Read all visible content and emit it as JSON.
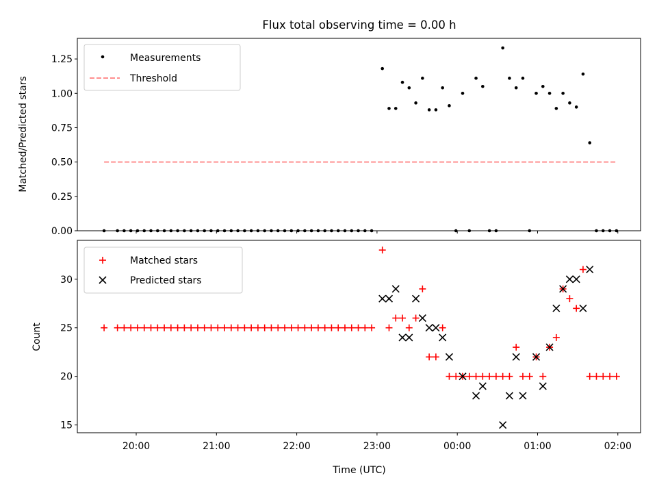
{
  "chart_data": [
    {
      "type": "scatter",
      "title": "Flux total observing time = 0.00 h",
      "xlabel": "",
      "ylabel": "Matched/Predicted stars",
      "ylim": [
        0,
        1.4
      ],
      "yticks": [
        "0.00",
        "0.25",
        "0.50",
        "0.75",
        "1.00",
        "1.25"
      ],
      "xlim": [
        "19:16",
        "02:17"
      ],
      "grid": false,
      "legend_position": "upper-left",
      "series": [
        {
          "name": "Measurements",
          "marker": "dot",
          "color": "#000000",
          "points": [
            [
              "19:36",
              0
            ],
            [
              "19:46",
              0
            ],
            [
              "19:51",
              0
            ],
            [
              "19:56",
              0
            ],
            [
              "20:01",
              0
            ],
            [
              "20:06",
              0
            ],
            [
              "20:11",
              0
            ],
            [
              "20:16",
              0
            ],
            [
              "20:21",
              0
            ],
            [
              "20:26",
              0
            ],
            [
              "20:31",
              0
            ],
            [
              "20:36",
              0
            ],
            [
              "20:41",
              0
            ],
            [
              "20:46",
              0
            ],
            [
              "20:51",
              0
            ],
            [
              "20:56",
              0
            ],
            [
              "21:01",
              0
            ],
            [
              "21:06",
              0
            ],
            [
              "21:11",
              0
            ],
            [
              "21:16",
              0
            ],
            [
              "21:21",
              0
            ],
            [
              "21:26",
              0
            ],
            [
              "21:31",
              0
            ],
            [
              "21:36",
              0
            ],
            [
              "21:41",
              0
            ],
            [
              "21:46",
              0
            ],
            [
              "21:51",
              0
            ],
            [
              "21:56",
              0
            ],
            [
              "22:01",
              0
            ],
            [
              "22:06",
              0
            ],
            [
              "22:11",
              0
            ],
            [
              "22:16",
              0
            ],
            [
              "22:21",
              0
            ],
            [
              "22:26",
              0
            ],
            [
              "22:31",
              0
            ],
            [
              "22:36",
              0
            ],
            [
              "22:41",
              0
            ],
            [
              "22:46",
              0
            ],
            [
              "22:51",
              0
            ],
            [
              "22:56",
              0
            ],
            [
              "23:04",
              1.18
            ],
            [
              "23:09",
              0.89
            ],
            [
              "23:14",
              0.89
            ],
            [
              "23:19",
              1.08
            ],
            [
              "23:24",
              1.04
            ],
            [
              "23:29",
              0.93
            ],
            [
              "23:34",
              1.11
            ],
            [
              "23:39",
              0.88
            ],
            [
              "23:44",
              0.88
            ],
            [
              "23:49",
              1.04
            ],
            [
              "23:54",
              0.91
            ],
            [
              "23:59",
              0
            ],
            [
              "00:04",
              1.0
            ],
            [
              "00:09",
              0
            ],
            [
              "00:14",
              1.11
            ],
            [
              "00:19",
              1.05
            ],
            [
              "00:24",
              0
            ],
            [
              "00:29",
              0
            ],
            [
              "00:34",
              1.33
            ],
            [
              "00:39",
              1.11
            ],
            [
              "00:44",
              1.04
            ],
            [
              "00:49",
              1.11
            ],
            [
              "00:54",
              0
            ],
            [
              "00:59",
              1.0
            ],
            [
              "01:04",
              1.05
            ],
            [
              "01:09",
              1.0
            ],
            [
              "01:14",
              0.89
            ],
            [
              "01:19",
              1.0
            ],
            [
              "01:24",
              0.93
            ],
            [
              "01:29",
              0.9
            ],
            [
              "01:34",
              1.14
            ],
            [
              "01:39",
              0.64
            ],
            [
              "01:44",
              0
            ],
            [
              "01:49",
              0
            ],
            [
              "01:54",
              0
            ],
            [
              "01:59",
              0
            ]
          ]
        },
        {
          "name": "Threshold",
          "style": "dashed",
          "color": "#ff7f7f",
          "points": [
            [
              "19:36",
              0.5
            ],
            [
              "01:59",
              0.5
            ]
          ]
        }
      ]
    },
    {
      "type": "scatter",
      "title": "",
      "xlabel": "Time (UTC)",
      "ylabel": "Count",
      "ylim": [
        14.2,
        34.0
      ],
      "yticks": [
        "15",
        "20",
        "25",
        "30"
      ],
      "xlim": [
        "19:16",
        "02:17"
      ],
      "xticks": [
        "20:00",
        "21:00",
        "22:00",
        "23:00",
        "00:00",
        "01:00",
        "02:00"
      ],
      "grid": false,
      "legend_position": "upper-left",
      "series": [
        {
          "name": "Matched stars",
          "marker": "plus",
          "color": "#ff0000",
          "points": [
            [
              "19:36",
              25
            ],
            [
              "19:46",
              25
            ],
            [
              "19:51",
              25
            ],
            [
              "19:56",
              25
            ],
            [
              "20:01",
              25
            ],
            [
              "20:06",
              25
            ],
            [
              "20:11",
              25
            ],
            [
              "20:16",
              25
            ],
            [
              "20:21",
              25
            ],
            [
              "20:26",
              25
            ],
            [
              "20:31",
              25
            ],
            [
              "20:36",
              25
            ],
            [
              "20:41",
              25
            ],
            [
              "20:46",
              25
            ],
            [
              "20:51",
              25
            ],
            [
              "20:56",
              25
            ],
            [
              "21:01",
              25
            ],
            [
              "21:06",
              25
            ],
            [
              "21:11",
              25
            ],
            [
              "21:16",
              25
            ],
            [
              "21:21",
              25
            ],
            [
              "21:26",
              25
            ],
            [
              "21:31",
              25
            ],
            [
              "21:36",
              25
            ],
            [
              "21:41",
              25
            ],
            [
              "21:46",
              25
            ],
            [
              "21:51",
              25
            ],
            [
              "21:56",
              25
            ],
            [
              "22:01",
              25
            ],
            [
              "22:06",
              25
            ],
            [
              "22:11",
              25
            ],
            [
              "22:16",
              25
            ],
            [
              "22:21",
              25
            ],
            [
              "22:26",
              25
            ],
            [
              "22:31",
              25
            ],
            [
              "22:36",
              25
            ],
            [
              "22:41",
              25
            ],
            [
              "22:46",
              25
            ],
            [
              "22:51",
              25
            ],
            [
              "22:56",
              25
            ],
            [
              "23:04",
              33
            ],
            [
              "23:09",
              25
            ],
            [
              "23:14",
              26
            ],
            [
              "23:19",
              26
            ],
            [
              "23:24",
              25
            ],
            [
              "23:29",
              26
            ],
            [
              "23:34",
              29
            ],
            [
              "23:39",
              22
            ],
            [
              "23:44",
              22
            ],
            [
              "23:49",
              25
            ],
            [
              "23:54",
              20
            ],
            [
              "23:59",
              20
            ],
            [
              "00:04",
              20
            ],
            [
              "00:09",
              20
            ],
            [
              "00:14",
              20
            ],
            [
              "00:19",
              20
            ],
            [
              "00:24",
              20
            ],
            [
              "00:29",
              20
            ],
            [
              "00:34",
              20
            ],
            [
              "00:39",
              20
            ],
            [
              "00:44",
              23
            ],
            [
              "00:49",
              20
            ],
            [
              "00:54",
              20
            ],
            [
              "00:59",
              22
            ],
            [
              "01:04",
              20
            ],
            [
              "01:09",
              23
            ],
            [
              "01:14",
              24
            ],
            [
              "01:19",
              29
            ],
            [
              "01:24",
              28
            ],
            [
              "01:29",
              27
            ],
            [
              "01:34",
              31
            ],
            [
              "01:39",
              20
            ],
            [
              "01:44",
              20
            ],
            [
              "01:49",
              20
            ],
            [
              "01:54",
              20
            ],
            [
              "01:59",
              20
            ]
          ]
        },
        {
          "name": "Predicted stars",
          "marker": "x",
          "color": "#000000",
          "points": [
            [
              "23:04",
              28
            ],
            [
              "23:09",
              28
            ],
            [
              "23:14",
              29
            ],
            [
              "23:19",
              24
            ],
            [
              "23:24",
              24
            ],
            [
              "23:29",
              28
            ],
            [
              "23:34",
              26
            ],
            [
              "23:39",
              25
            ],
            [
              "23:44",
              25
            ],
            [
              "23:49",
              24
            ],
            [
              "23:54",
              22
            ],
            [
              "00:04",
              20
            ],
            [
              "00:14",
              18
            ],
            [
              "00:19",
              19
            ],
            [
              "00:34",
              15
            ],
            [
              "00:39",
              18
            ],
            [
              "00:44",
              22
            ],
            [
              "00:49",
              18
            ],
            [
              "00:59",
              22
            ],
            [
              "01:04",
              19
            ],
            [
              "01:09",
              23
            ],
            [
              "01:14",
              27
            ],
            [
              "01:19",
              29
            ],
            [
              "01:24",
              30
            ],
            [
              "01:29",
              30
            ],
            [
              "01:34",
              27
            ],
            [
              "01:39",
              31
            ]
          ]
        }
      ]
    }
  ]
}
